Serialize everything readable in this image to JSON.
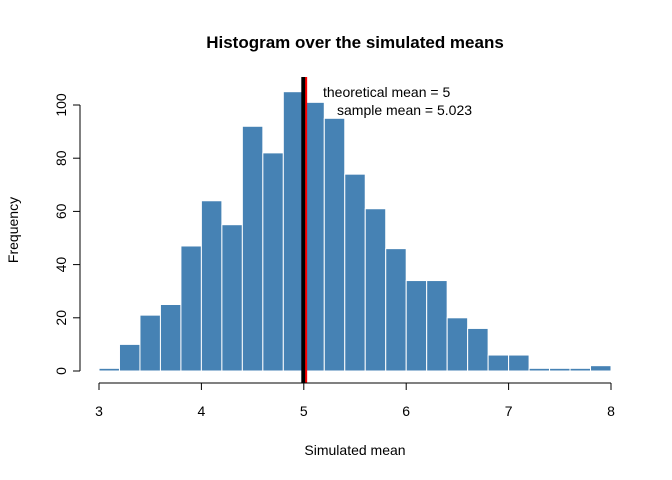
{
  "chart_data": {
    "type": "bar",
    "title": "Histogram over the simulated means",
    "xlabel": "Simulated mean",
    "ylabel": "Frequency",
    "xlim": [
      3,
      8
    ],
    "ylim": [
      0,
      105
    ],
    "x_ticks": [
      "3",
      "4",
      "5",
      "6",
      "7",
      "8"
    ],
    "y_ticks": [
      "0",
      "20",
      "40",
      "60",
      "80",
      "100"
    ],
    "bin_width": 0.2,
    "bins": [
      {
        "x0": 3.0,
        "x1": 3.2,
        "count": 1
      },
      {
        "x0": 3.2,
        "x1": 3.4,
        "count": 10
      },
      {
        "x0": 3.4,
        "x1": 3.6,
        "count": 21
      },
      {
        "x0": 3.6,
        "x1": 3.8,
        "count": 25
      },
      {
        "x0": 3.8,
        "x1": 4.0,
        "count": 47
      },
      {
        "x0": 4.0,
        "x1": 4.2,
        "count": 64
      },
      {
        "x0": 4.2,
        "x1": 4.4,
        "count": 55
      },
      {
        "x0": 4.4,
        "x1": 4.6,
        "count": 92
      },
      {
        "x0": 4.6,
        "x1": 4.8,
        "count": 82
      },
      {
        "x0": 4.8,
        "x1": 5.0,
        "count": 105
      },
      {
        "x0": 5.0,
        "x1": 5.2,
        "count": 101
      },
      {
        "x0": 5.2,
        "x1": 5.4,
        "count": 95
      },
      {
        "x0": 5.4,
        "x1": 5.6,
        "count": 74
      },
      {
        "x0": 5.6,
        "x1": 5.8,
        "count": 61
      },
      {
        "x0": 5.8,
        "x1": 6.0,
        "count": 46
      },
      {
        "x0": 6.0,
        "x1": 6.2,
        "count": 34
      },
      {
        "x0": 6.2,
        "x1": 6.4,
        "count": 34
      },
      {
        "x0": 6.4,
        "x1": 6.6,
        "count": 20
      },
      {
        "x0": 6.6,
        "x1": 6.8,
        "count": 16
      },
      {
        "x0": 6.8,
        "x1": 7.0,
        "count": 6
      },
      {
        "x0": 7.0,
        "x1": 7.2,
        "count": 6
      },
      {
        "x0": 7.2,
        "x1": 7.4,
        "count": 1
      },
      {
        "x0": 7.4,
        "x1": 7.6,
        "count": 1
      },
      {
        "x0": 7.6,
        "x1": 7.8,
        "count": 1
      },
      {
        "x0": 7.8,
        "x1": 8.0,
        "count": 2
      }
    ],
    "bar_color": "#4682b4",
    "bar_border_color": "#ffffff",
    "vlines": [
      {
        "value": 5,
        "color": "#000000",
        "label": "theoretical mean = 5"
      },
      {
        "value": 5.023,
        "color": "#ff0000",
        "label": "sample mean = 5.023"
      }
    ],
    "grid": false,
    "legend": "none"
  }
}
